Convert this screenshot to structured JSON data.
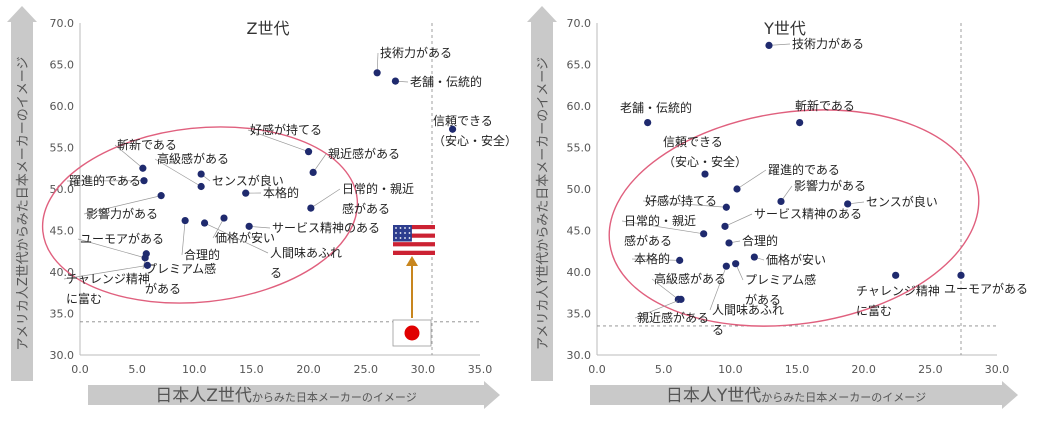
{
  "chart_data": [
    {
      "type": "scatter",
      "title": "Z世代",
      "ylabel": "アメリカ人Z世代からみた日本メーカーのイメージ",
      "xlabel": {
        "main": "日本人Z世代",
        "sub": "からみた日本メーカーのイメージ"
      },
      "xlim": [
        0,
        35
      ],
      "ylim": [
        30,
        70
      ],
      "xticks": [
        "0.0",
        "5.0",
        "10.0",
        "15.0",
        "20.0",
        "25.0",
        "30.0",
        "35.0"
      ],
      "yticks": [
        "30.0",
        "35.0",
        "40.0",
        "45.0",
        "50.0",
        "55.0",
        "60.0",
        "65.0",
        "70.0"
      ],
      "ref_x": 30.8,
      "ref_y": 34.0,
      "flags": [
        "usa",
        "japan"
      ],
      "points": [
        {
          "label": "技術力がある",
          "x": 26.0,
          "y": 64.0
        },
        {
          "label": "老舗・伝統的",
          "x": 27.6,
          "y": 63.0
        },
        {
          "label": "信頼できる(安心・安全)",
          "x": 32.6,
          "y": 57.2
        },
        {
          "label": "好感が持てる",
          "x": 20.0,
          "y": 54.5
        },
        {
          "label": "親近感がある",
          "x": 20.4,
          "y": 52.0
        },
        {
          "label": "日常的・親近感がある",
          "x": 20.2,
          "y": 47.7
        },
        {
          "label": "サービス精神のある",
          "x": 14.8,
          "y": 45.5
        },
        {
          "label": "本格的",
          "x": 14.5,
          "y": 49.5
        },
        {
          "label": "センスが良い",
          "x": 10.6,
          "y": 51.8
        },
        {
          "label": "高級感がある",
          "x": 10.6,
          "y": 50.3
        },
        {
          "label": "斬新である",
          "x": 5.5,
          "y": 52.5
        },
        {
          "label": "躍進的である",
          "x": 5.6,
          "y": 51.0
        },
        {
          "label": "影響力がある",
          "x": 7.1,
          "y": 49.2
        },
        {
          "label": "価格が安い",
          "x": 12.6,
          "y": 46.5
        },
        {
          "label": "人間味あふれる",
          "x": 10.9,
          "y": 45.9
        },
        {
          "label": "合理的",
          "x": 9.2,
          "y": 46.2
        },
        {
          "label": "プレミアム感がある",
          "x": 5.8,
          "y": 42.2
        },
        {
          "label": "ユーモアがある",
          "x": 5.7,
          "y": 41.7
        },
        {
          "label": "チャレンジ精神に富む",
          "x": 5.9,
          "y": 40.8
        }
      ]
    },
    {
      "type": "scatter",
      "title": "Y世代",
      "ylabel": "アメリカ人Y世代からみた日本メーカーのイメージ",
      "xlabel": {
        "main": "日本人Y世代",
        "sub": "からみた日本メーカーのイメージ"
      },
      "xlim": [
        0,
        30
      ],
      "ylim": [
        30,
        70
      ],
      "xticks": [
        "0.0",
        "5.0",
        "10.0",
        "15.0",
        "20.0",
        "25.0",
        "30.0"
      ],
      "yticks": [
        "30.0",
        "35.0",
        "40.0",
        "45.0",
        "50.0",
        "55.0",
        "60.0",
        "65.0",
        "70.0"
      ],
      "ref_x": 27.3,
      "ref_y": 33.5,
      "points": [
        {
          "label": "技術力がある",
          "x": 12.9,
          "y": 67.3
        },
        {
          "label": "老舗・伝統的",
          "x": 3.8,
          "y": 58.0
        },
        {
          "label": "斬新である",
          "x": 15.2,
          "y": 58.0
        },
        {
          "label": "信頼できる(安心・安全)",
          "x": 8.1,
          "y": 51.8
        },
        {
          "label": "躍進的である",
          "x": 10.5,
          "y": 50.0
        },
        {
          "label": "影響力がある",
          "x": 13.8,
          "y": 48.5
        },
        {
          "label": "センスが良い",
          "x": 18.8,
          "y": 48.2
        },
        {
          "label": "好感が持てる",
          "x": 9.7,
          "y": 47.8
        },
        {
          "label": "サービス精神のある",
          "x": 9.6,
          "y": 45.5
        },
        {
          "label": "日常的・親近感がある",
          "x": 8.0,
          "y": 44.6
        },
        {
          "label": "合理的",
          "x": 9.9,
          "y": 43.5
        },
        {
          "label": "本格的",
          "x": 6.2,
          "y": 41.4
        },
        {
          "label": "価格が安い",
          "x": 11.8,
          "y": 41.8
        },
        {
          "label": "プレミアム感がある",
          "x": 10.4,
          "y": 41.0
        },
        {
          "label": "人間味あふれる",
          "x": 9.7,
          "y": 40.7
        },
        {
          "label": "高級感がある",
          "x": 6.1,
          "y": 36.7
        },
        {
          "label": "親近感がある",
          "x": 6.3,
          "y": 36.7
        },
        {
          "label": "チャレンジ精神に富む",
          "x": 22.4,
          "y": 39.6
        },
        {
          "label": "ユーモアがある",
          "x": 27.3,
          "y": 39.6
        }
      ]
    }
  ],
  "colors": {
    "dot": "#1f2a6e",
    "ellipse": "#e0607e",
    "arrow_fill": "#c9c9c9",
    "arrow_text": "#555555",
    "ref_line": "#888888",
    "flag_arrow": "#c8861e",
    "japan_red": "#e00000",
    "usa_red": "#cc2233",
    "usa_blue": "#2d3d8e"
  }
}
